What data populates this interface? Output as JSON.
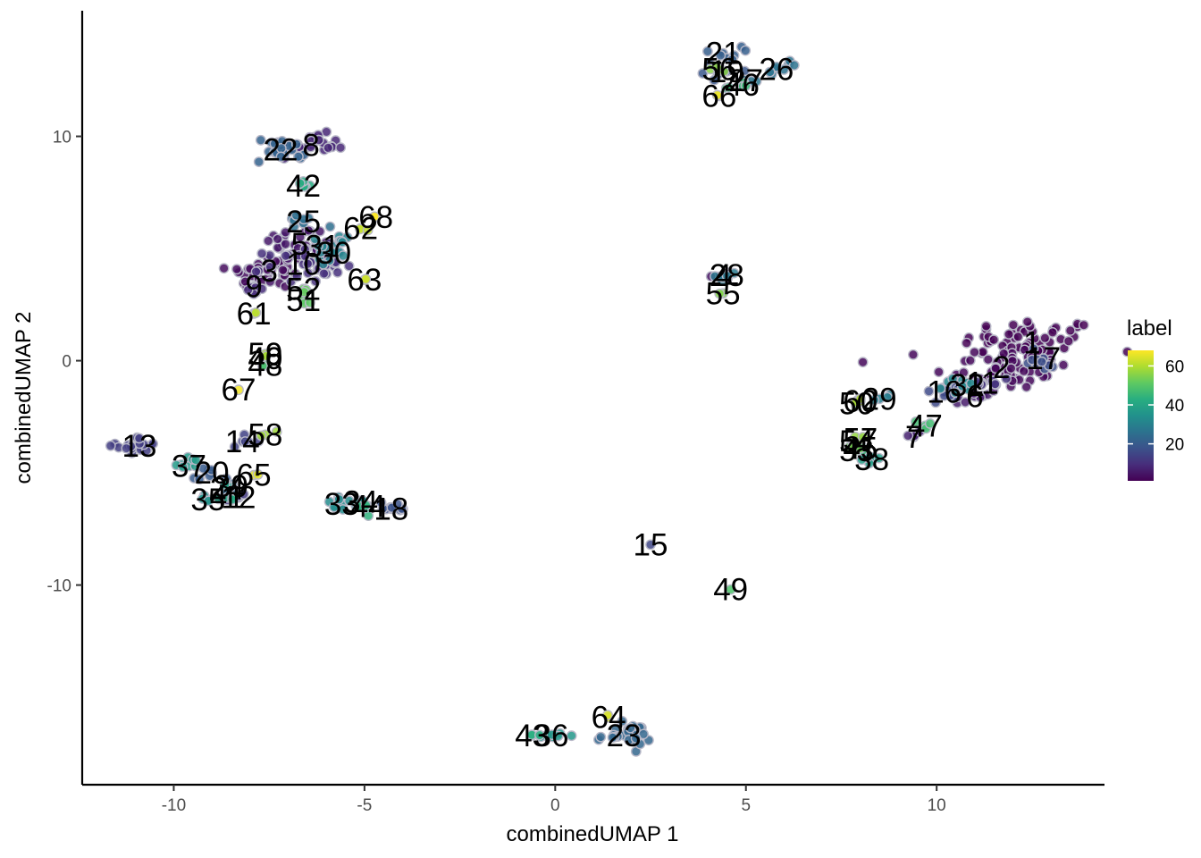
{
  "chart_data": {
    "type": "scatter",
    "xlabel": "combinedUMAP 1",
    "ylabel": "combinedUMAP 2",
    "xlim": [
      -12.4,
      14.4
    ],
    "ylim": [
      -18.9,
      15.6
    ],
    "xticks": [
      -10,
      -5,
      0,
      5,
      10
    ],
    "yticks": [
      -10,
      0,
      10
    ],
    "xtick_labels": [
      "-10",
      "-5",
      "0",
      "5",
      "10"
    ],
    "ytick_labels": [
      "-10",
      "0",
      "10"
    ],
    "grid": false,
    "legend": {
      "title": "label",
      "placement": "right",
      "colormap": "viridis",
      "range": [
        1,
        68
      ],
      "ticks": [
        20,
        40,
        60
      ],
      "tick_labels": [
        "20",
        "40",
        "60"
      ]
    },
    "clusters": [
      {
        "label": "1",
        "x": 12.5,
        "y": 0.8,
        "value": 1,
        "sx": 0.9,
        "sy": 0.55,
        "n": 60
      },
      {
        "label": "2",
        "x": 11.7,
        "y": -0.3,
        "value": 2,
        "sx": 0.9,
        "sy": 0.5,
        "n": 50
      },
      {
        "label": "3",
        "x": -7.5,
        "y": 4.0,
        "value": 3,
        "sx": 0.55,
        "sy": 0.4,
        "n": 40
      },
      {
        "label": "4",
        "x": 4.4,
        "y": 3.8,
        "value": 4,
        "sx": 0.2,
        "sy": 0.1,
        "n": 6
      },
      {
        "label": "5",
        "x": -6.7,
        "y": 5.2,
        "value": 5,
        "sx": 0.5,
        "sy": 0.4,
        "n": 35
      },
      {
        "label": "6",
        "x": 11.0,
        "y": -1.6,
        "value": 6,
        "sx": 0.3,
        "sy": 0.2,
        "n": 10
      },
      {
        "label": "7",
        "x": 9.4,
        "y": -3.4,
        "value": 7,
        "sx": 0.1,
        "sy": 0.2,
        "n": 4
      },
      {
        "label": "8",
        "x": -6.4,
        "y": 9.6,
        "value": 8,
        "sx": 0.45,
        "sy": 0.25,
        "n": 30
      },
      {
        "label": "9",
        "x": -7.9,
        "y": 3.3,
        "value": 9,
        "sx": 0.2,
        "sy": 0.3,
        "n": 8
      },
      {
        "label": "10",
        "x": -6.6,
        "y": 4.3,
        "value": 10,
        "sx": 0.5,
        "sy": 0.4,
        "n": 30
      },
      {
        "label": "11",
        "x": 11.2,
        "y": -1.0,
        "value": 11,
        "sx": 0.4,
        "sy": 0.2,
        "n": 12
      },
      {
        "label": "12",
        "x": -8.3,
        "y": -6.1,
        "value": 12,
        "sx": 0.25,
        "sy": 0.15,
        "n": 8
      },
      {
        "label": "13",
        "x": -10.9,
        "y": -3.8,
        "value": 13,
        "sx": 0.3,
        "sy": 0.2,
        "n": 18
      },
      {
        "label": "14",
        "x": -8.2,
        "y": -3.6,
        "value": 14,
        "sx": 0.2,
        "sy": 0.15,
        "n": 6
      },
      {
        "label": "15",
        "x": 2.5,
        "y": -8.2,
        "value": 15,
        "sx": 0.05,
        "sy": 0.05,
        "n": 1
      },
      {
        "label": "16",
        "x": 10.2,
        "y": -1.4,
        "value": 16,
        "sx": 0.3,
        "sy": 0.2,
        "n": 10
      },
      {
        "label": "17",
        "x": 12.8,
        "y": 0.1,
        "value": 17,
        "sx": 0.3,
        "sy": 0.3,
        "n": 10
      },
      {
        "label": "18",
        "x": -4.3,
        "y": -6.6,
        "value": 18,
        "sx": 0.3,
        "sy": 0.15,
        "n": 10
      },
      {
        "label": "19",
        "x": 4.5,
        "y": 12.9,
        "value": 19,
        "sx": 0.3,
        "sy": 0.2,
        "n": 8
      },
      {
        "label": "20",
        "x": -9.0,
        "y": -5.0,
        "value": 20,
        "sx": 0.25,
        "sy": 0.2,
        "n": 8
      },
      {
        "label": "21",
        "x": 4.4,
        "y": 13.7,
        "value": 21,
        "sx": 0.25,
        "sy": 0.15,
        "n": 8
      },
      {
        "label": "22",
        "x": -7.2,
        "y": 9.4,
        "value": 22,
        "sx": 0.35,
        "sy": 0.3,
        "n": 20
      },
      {
        "label": "23",
        "x": 1.8,
        "y": -16.7,
        "value": 23,
        "sx": 0.35,
        "sy": 0.25,
        "n": 25
      },
      {
        "label": "24",
        "x": -8.6,
        "y": -5.7,
        "value": 24,
        "sx": 0.2,
        "sy": 0.15,
        "n": 6
      },
      {
        "label": "25",
        "x": -6.6,
        "y": 6.2,
        "value": 25,
        "sx": 0.25,
        "sy": 0.2,
        "n": 10
      },
      {
        "label": "26",
        "x": 5.8,
        "y": 13.0,
        "value": 26,
        "sx": 0.3,
        "sy": 0.2,
        "n": 8
      },
      {
        "label": "27",
        "x": 5.0,
        "y": 12.5,
        "value": 27,
        "sx": 0.2,
        "sy": 0.15,
        "n": 6
      },
      {
        "label": "28",
        "x": 4.5,
        "y": 3.8,
        "value": 28,
        "sx": 0.15,
        "sy": 0.1,
        "n": 6
      },
      {
        "label": "29",
        "x": 8.5,
        "y": -1.7,
        "value": 29,
        "sx": 0.25,
        "sy": 0.15,
        "n": 6
      },
      {
        "label": "30",
        "x": -5.8,
        "y": 4.8,
        "value": 30,
        "sx": 0.3,
        "sy": 0.2,
        "n": 10
      },
      {
        "label": "31",
        "x": -6.1,
        "y": 5.1,
        "value": 31,
        "sx": 0.3,
        "sy": 0.2,
        "n": 10
      },
      {
        "label": "32",
        "x": 10.8,
        "y": -1.1,
        "value": 32,
        "sx": 0.3,
        "sy": 0.2,
        "n": 10
      },
      {
        "label": "33",
        "x": -5.6,
        "y": -6.4,
        "value": 33,
        "sx": 0.2,
        "sy": 0.15,
        "n": 8
      },
      {
        "label": "34",
        "x": -5.1,
        "y": -6.3,
        "value": 34,
        "sx": 0.2,
        "sy": 0.15,
        "n": 8
      },
      {
        "label": "35",
        "x": -9.1,
        "y": -6.2,
        "value": 35,
        "sx": 0.15,
        "sy": 0.1,
        "n": 4
      },
      {
        "label": "36",
        "x": -0.1,
        "y": -16.7,
        "value": 36,
        "sx": 0.3,
        "sy": 0.08,
        "n": 10
      },
      {
        "label": "37",
        "x": -9.6,
        "y": -4.7,
        "value": 37,
        "sx": 0.3,
        "sy": 0.2,
        "n": 8
      },
      {
        "label": "38",
        "x": 8.3,
        "y": -4.4,
        "value": 38,
        "sx": 0.25,
        "sy": 0.1,
        "n": 6
      },
      {
        "label": "39",
        "x": -8.5,
        "y": -5.6,
        "value": 39,
        "sx": 0.15,
        "sy": 0.1,
        "n": 4
      },
      {
        "label": "40",
        "x": -7.6,
        "y": 0.1,
        "value": 40,
        "sx": 0.05,
        "sy": 0.05,
        "n": 2
      },
      {
        "label": "41",
        "x": -8.6,
        "y": -6.1,
        "value": 41,
        "sx": 0.15,
        "sy": 0.1,
        "n": 4
      },
      {
        "label": "42",
        "x": -6.6,
        "y": 7.8,
        "value": 42,
        "sx": 0.2,
        "sy": 0.15,
        "n": 6
      },
      {
        "label": "43",
        "x": -0.6,
        "y": -16.7,
        "value": 43,
        "sx": 0.1,
        "sy": 0.05,
        "n": 3
      },
      {
        "label": "44",
        "x": -4.9,
        "y": -6.5,
        "value": 44,
        "sx": 0.2,
        "sy": 0.15,
        "n": 6
      },
      {
        "label": "45",
        "x": 8.0,
        "y": -3.9,
        "value": 45,
        "sx": 0.15,
        "sy": 0.1,
        "n": 4
      },
      {
        "label": "46",
        "x": 4.9,
        "y": 12.3,
        "value": 46,
        "sx": 0.2,
        "sy": 0.15,
        "n": 6
      },
      {
        "label": "47",
        "x": 9.7,
        "y": -2.9,
        "value": 47,
        "sx": 0.15,
        "sy": 0.1,
        "n": 4
      },
      {
        "label": "48",
        "x": -7.6,
        "y": -0.2,
        "value": 48,
        "sx": 0.05,
        "sy": 0.05,
        "n": 2
      },
      {
        "label": "49",
        "x": 4.6,
        "y": -10.2,
        "value": 49,
        "sx": 0.05,
        "sy": 0.05,
        "n": 1
      },
      {
        "label": "50",
        "x": 7.9,
        "y": -1.9,
        "value": 50,
        "sx": 0.1,
        "sy": 0.1,
        "n": 3
      },
      {
        "label": "51",
        "x": -6.6,
        "y": 2.7,
        "value": 51,
        "sx": 0.1,
        "sy": 0.1,
        "n": 3
      },
      {
        "label": "52",
        "x": -6.6,
        "y": 3.2,
        "value": 52,
        "sx": 0.1,
        "sy": 0.1,
        "n": 3
      },
      {
        "label": "53",
        "x": 7.9,
        "y": -4.0,
        "value": 53,
        "sx": 0.1,
        "sy": 0.1,
        "n": 3
      },
      {
        "label": "54",
        "x": 7.9,
        "y": -3.6,
        "value": 54,
        "sx": 0.1,
        "sy": 0.1,
        "n": 3
      },
      {
        "label": "55",
        "x": 4.4,
        "y": 3.0,
        "value": 55,
        "sx": 0.05,
        "sy": 0.05,
        "n": 2
      },
      {
        "label": "56",
        "x": 4.3,
        "y": 13.0,
        "value": 56,
        "sx": 0.15,
        "sy": 0.1,
        "n": 4
      },
      {
        "label": "57",
        "x": 8.0,
        "y": -3.5,
        "value": 57,
        "sx": 0.1,
        "sy": 0.1,
        "n": 3
      },
      {
        "label": "58",
        "x": -7.6,
        "y": -3.3,
        "value": 58,
        "sx": 0.1,
        "sy": 0.1,
        "n": 3
      },
      {
        "label": "59",
        "x": -7.6,
        "y": 0.3,
        "value": 59,
        "sx": 0.05,
        "sy": 0.05,
        "n": 2
      },
      {
        "label": "60",
        "x": 8.0,
        "y": -1.8,
        "value": 60,
        "sx": 0.1,
        "sy": 0.1,
        "n": 3
      },
      {
        "label": "61",
        "x": -7.9,
        "y": 2.1,
        "value": 61,
        "sx": 0.05,
        "sy": 0.05,
        "n": 2
      },
      {
        "label": "62",
        "x": -5.1,
        "y": 5.9,
        "value": 62,
        "sx": 0.1,
        "sy": 0.1,
        "n": 3
      },
      {
        "label": "63",
        "x": -5.0,
        "y": 3.6,
        "value": 63,
        "sx": 0.05,
        "sy": 0.05,
        "n": 2
      },
      {
        "label": "64",
        "x": 1.4,
        "y": -15.9,
        "value": 64,
        "sx": 0.05,
        "sy": 0.05,
        "n": 2
      },
      {
        "label": "65",
        "x": -7.9,
        "y": -5.1,
        "value": 65,
        "sx": 0.05,
        "sy": 0.05,
        "n": 2
      },
      {
        "label": "66",
        "x": 4.3,
        "y": 11.8,
        "value": 66,
        "sx": 0.05,
        "sy": 0.05,
        "n": 2
      },
      {
        "label": "67",
        "x": -8.3,
        "y": -1.3,
        "value": 67,
        "sx": 0.05,
        "sy": 0.05,
        "n": 1
      },
      {
        "label": "68",
        "x": -4.7,
        "y": 6.4,
        "value": 68,
        "sx": 0.05,
        "sy": 0.05,
        "n": 2
      }
    ]
  }
}
